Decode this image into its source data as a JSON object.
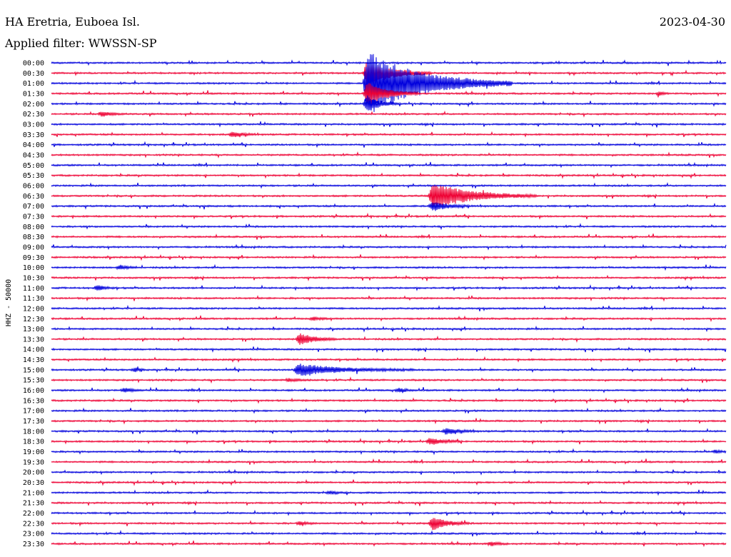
{
  "chart_data": {
    "type": "line",
    "subtype": "helicorder",
    "station": "HA Eretria, Euboea Isl.",
    "date": "2023-04-30",
    "filter": "Applied filter: WWSSN-SP",
    "ylabel": "HHZ - 50000",
    "row_times": [
      "00:00",
      "00:30",
      "01:00",
      "01:30",
      "02:00",
      "02:30",
      "03:00",
      "03:30",
      "04:00",
      "04:30",
      "05:00",
      "05:30",
      "06:00",
      "06:30",
      "07:00",
      "07:30",
      "08:00",
      "08:30",
      "09:00",
      "09:30",
      "10:00",
      "10:30",
      "11:00",
      "11:30",
      "12:00",
      "12:30",
      "13:00",
      "13:30",
      "14:00",
      "14:30",
      "15:00",
      "15:30",
      "16:00",
      "16:30",
      "17:00",
      "17:30",
      "18:00",
      "18:30",
      "19:00",
      "19:30",
      "20:00",
      "20:30",
      "21:00",
      "21:30",
      "22:00",
      "22:30",
      "23:00",
      "23:30"
    ],
    "colors": [
      "#0000dd",
      "#ee0033"
    ],
    "events": [
      {
        "row": 2,
        "minute": 13.9,
        "amp": 3.2,
        "dur": 2.2
      },
      {
        "row": 1,
        "minute": 13.9,
        "amp": 1.3,
        "dur": 1.0
      },
      {
        "row": 3,
        "minute": 13.9,
        "amp": 1.2,
        "dur": 0.8
      },
      {
        "row": 4,
        "minute": 13.9,
        "amp": 0.8,
        "dur": 0.5
      },
      {
        "row": 13,
        "minute": 16.8,
        "amp": 1.3,
        "dur": 1.6
      },
      {
        "row": 14,
        "minute": 16.8,
        "amp": 0.5,
        "dur": 0.6
      },
      {
        "row": 30,
        "minute": 10.8,
        "amp": 0.6,
        "dur": 1.8
      },
      {
        "row": 27,
        "minute": 10.9,
        "amp": 0.6,
        "dur": 0.6
      },
      {
        "row": 45,
        "minute": 16.8,
        "amp": 0.7,
        "dur": 0.6
      },
      {
        "row": 37,
        "minute": 16.7,
        "amp": 0.35,
        "dur": 0.5
      },
      {
        "row": 36,
        "minute": 17.4,
        "amp": 0.3,
        "dur": 0.5
      },
      {
        "row": 5,
        "minute": 2.1,
        "amp": 0.25,
        "dur": 0.4
      },
      {
        "row": 7,
        "minute": 7.9,
        "amp": 0.25,
        "dur": 0.4
      },
      {
        "row": 22,
        "minute": 1.9,
        "amp": 0.25,
        "dur": 0.3
      },
      {
        "row": 20,
        "minute": 2.9,
        "amp": 0.22,
        "dur": 0.3
      },
      {
        "row": 32,
        "minute": 3.1,
        "amp": 0.22,
        "dur": 0.3
      },
      {
        "row": 32,
        "minute": 15.3,
        "amp": 0.2,
        "dur": 0.3
      },
      {
        "row": 30,
        "minute": 3.6,
        "amp": 0.2,
        "dur": 0.2
      },
      {
        "row": 47,
        "minute": 19.4,
        "amp": 0.2,
        "dur": 0.3
      },
      {
        "row": 45,
        "minute": 10.9,
        "amp": 0.18,
        "dur": 0.3
      },
      {
        "row": 25,
        "minute": 11.5,
        "amp": 0.15,
        "dur": 0.3
      },
      {
        "row": 31,
        "minute": 10.4,
        "amp": 0.15,
        "dur": 0.4
      },
      {
        "row": 38,
        "minute": 29.4,
        "amp": 0.15,
        "dur": 0.2
      },
      {
        "row": 3,
        "minute": 26.9,
        "amp": 0.2,
        "dur": 0.2
      },
      {
        "row": 42,
        "minute": 12.2,
        "amp": 0.12,
        "dur": 0.4
      }
    ]
  }
}
